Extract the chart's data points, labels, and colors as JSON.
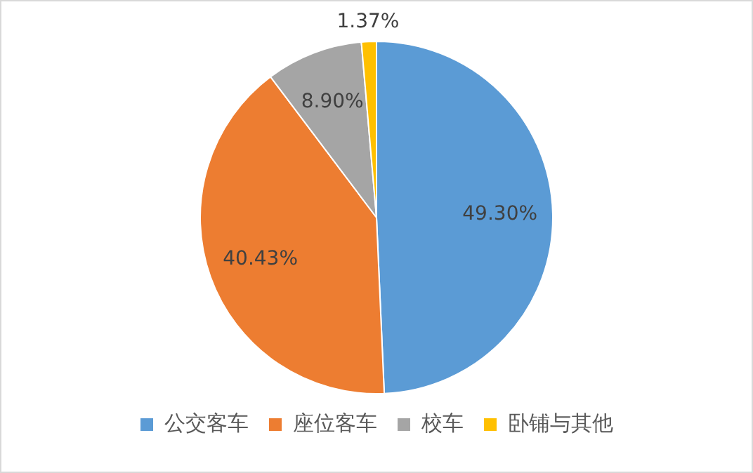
{
  "chart_data": {
    "type": "pie",
    "categories": [
      "公交客车",
      "座位客车",
      "校车",
      "卧铺与其他"
    ],
    "values": [
      49.3,
      40.43,
      8.9,
      1.37
    ],
    "colors": [
      "#5b9bd5",
      "#ed7d31",
      "#a5a5a5",
      "#ffc000"
    ],
    "value_labels": [
      "49.30%",
      "40.43%",
      "8.90%",
      "1.37%"
    ],
    "legend": "bottom"
  }
}
